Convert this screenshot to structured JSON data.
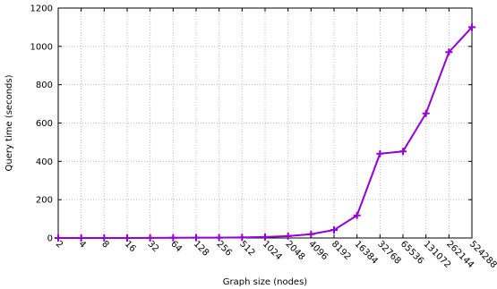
{
  "chart_data": {
    "type": "line",
    "title": "",
    "xlabel": "Graph size (nodes)",
    "ylabel": "Query time (seconds)",
    "categories": [
      "2",
      "4",
      "8",
      "16",
      "32",
      "64",
      "128",
      "256",
      "512",
      "1024",
      "2048",
      "4096",
      "8192",
      "16384",
      "32768",
      "65536",
      "131072",
      "262144",
      "524288"
    ],
    "series": [
      {
        "color": "#9400d3",
        "marker": "plus",
        "values": [
          0,
          0,
          0,
          0,
          0.5,
          1,
          1.5,
          2,
          3,
          5,
          10,
          20,
          42,
          118,
          440,
          452,
          650,
          970,
          1100
        ]
      }
    ],
    "yticks": [
      0,
      200,
      400,
      600,
      800,
      1000,
      1200
    ],
    "ylim": [
      0,
      1200
    ],
    "grid": true,
    "legend": "none"
  }
}
